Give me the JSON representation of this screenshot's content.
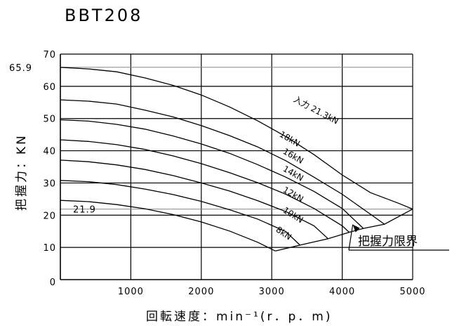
{
  "chart_data": {
    "type": "line",
    "title": "BBT208",
    "xlabel": "回転速度：min⁻¹(r．p．m)",
    "ylabel": "把握力：KN",
    "xlim": [
      0,
      5000
    ],
    "ylim": [
      0,
      70
    ],
    "xticks": [
      "1000",
      "2000",
      "3000",
      "4000",
      "5000"
    ],
    "yticks": [
      "0",
      "10",
      "20",
      "30",
      "40",
      "50",
      "60",
      "70"
    ],
    "grid": true,
    "reference_lines": [
      {
        "label": "65.9",
        "value": 65.9
      },
      {
        "label": "21.9",
        "value": 21.9
      }
    ],
    "series": [
      {
        "name": "入力 21.3kN",
        "x0": 65.9,
        "x": [
          0,
          400,
          800,
          1200,
          1600,
          2000,
          2400,
          2800,
          3200,
          3600,
          4000,
          4400,
          4800,
          5000
        ],
        "y": [
          65.9,
          65.4,
          64.5,
          62.6,
          60.3,
          57.3,
          53.6,
          49.3,
          44.4,
          38.8,
          32.5,
          27.0,
          23.7,
          21.9
        ]
      },
      {
        "name": "18kN",
        "x": [
          0,
          400,
          800,
          1200,
          1600,
          2000,
          2400,
          2800,
          3200,
          3600,
          4000,
          4400,
          4600
        ],
        "y": [
          55.8,
          55.4,
          54.5,
          52.6,
          50.5,
          47.8,
          44.7,
          41.2,
          36.9,
          31.8,
          26.5,
          20.3,
          17.2
        ]
      },
      {
        "name": "16kN",
        "x": [
          0,
          400,
          800,
          1200,
          1600,
          2000,
          2400,
          2800,
          3200,
          3600,
          4000,
          4300
        ],
        "y": [
          49.6,
          49.2,
          48.2,
          46.7,
          44.6,
          42.1,
          39.2,
          35.7,
          31.8,
          27.4,
          22.1,
          15.9
        ]
      },
      {
        "name": "14kN",
        "x": [
          0,
          400,
          800,
          1200,
          1600,
          2000,
          2400,
          2800,
          3200,
          3600,
          4000,
          4100
        ],
        "y": [
          43.4,
          42.9,
          41.9,
          40.4,
          38.4,
          36.0,
          33.2,
          30.1,
          26.5,
          22.1,
          16.7,
          14.7
        ]
      },
      {
        "name": "12kN",
        "x": [
          0,
          400,
          800,
          1200,
          1600,
          2000,
          2400,
          2800,
          3200,
          3600,
          3800
        ],
        "y": [
          37.1,
          36.6,
          35.6,
          34.2,
          32.3,
          30.0,
          27.5,
          24.5,
          21.1,
          16.7,
          12.7
        ]
      },
      {
        "name": "10kN",
        "x": [
          0,
          400,
          800,
          1200,
          1600,
          2000,
          2400,
          2800,
          3200,
          3400
        ],
        "y": [
          30.8,
          30.4,
          29.5,
          28.1,
          26.4,
          24.3,
          21.7,
          18.8,
          14.9,
          10.7
        ]
      },
      {
        "name": "8kN",
        "x": [
          0,
          400,
          800,
          1200,
          1600,
          2000,
          2400,
          2800,
          3050
        ],
        "y": [
          24.6,
          24.2,
          23.3,
          22.0,
          20.2,
          17.9,
          15.1,
          11.6,
          8.9
        ]
      },
      {
        "name": "把握力限界",
        "x": [
          3050,
          3400,
          3800,
          4100,
          4300,
          4600,
          5000
        ],
        "y": [
          8.9,
          10.7,
          12.7,
          14.7,
          15.9,
          17.2,
          21.9
        ]
      }
    ],
    "annotations": [
      "把握力限界"
    ]
  }
}
